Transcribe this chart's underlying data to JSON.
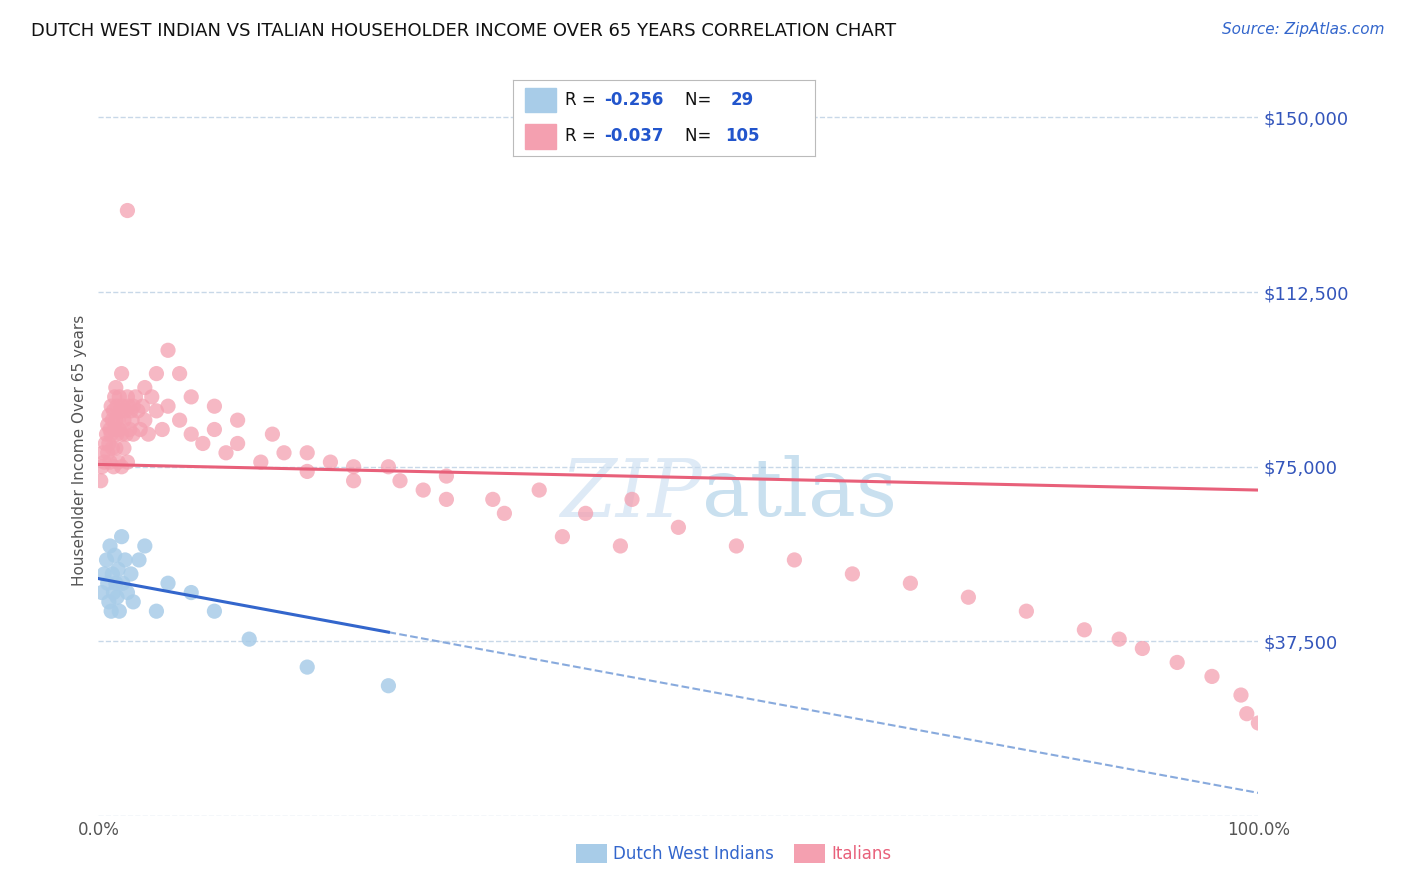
{
  "title": "DUTCH WEST INDIAN VS ITALIAN HOUSEHOLDER INCOME OVER 65 YEARS CORRELATION CHART",
  "source": "Source: ZipAtlas.com",
  "ylabel": "Householder Income Over 65 years",
  "xlim": [
    0.0,
    100.0
  ],
  "ylim": [
    0,
    157000
  ],
  "yticks": [
    0,
    37500,
    75000,
    112500,
    150000
  ],
  "ytick_labels": [
    "",
    "$37,500",
    "$75,000",
    "$112,500",
    "$150,000"
  ],
  "xtick_labels": [
    "0.0%",
    "100.0%"
  ],
  "legend_label1": "Dutch West Indians",
  "legend_label2": "Italians",
  "color_dwi": "#a8cce8",
  "color_ital": "#f4a0b0",
  "background_color": "#ffffff",
  "grid_color": "#c8d8e8",
  "dwi_x": [
    0.3,
    0.5,
    0.7,
    0.8,
    0.9,
    1.0,
    1.1,
    1.2,
    1.3,
    1.4,
    1.5,
    1.6,
    1.7,
    1.8,
    2.0,
    2.1,
    2.3,
    2.5,
    2.8,
    3.0,
    3.5,
    4.0,
    5.0,
    6.0,
    8.0,
    10.0,
    13.0,
    18.0,
    25.0
  ],
  "dwi_y": [
    48000,
    52000,
    55000,
    50000,
    46000,
    58000,
    44000,
    52000,
    48000,
    56000,
    50000,
    47000,
    53000,
    44000,
    60000,
    50000,
    55000,
    48000,
    52000,
    46000,
    55000,
    58000,
    44000,
    50000,
    48000,
    44000,
    38000,
    32000,
    28000
  ],
  "ital_x": [
    0.2,
    0.3,
    0.4,
    0.5,
    0.6,
    0.7,
    0.8,
    0.8,
    0.9,
    0.9,
    1.0,
    1.0,
    1.1,
    1.1,
    1.2,
    1.2,
    1.3,
    1.3,
    1.4,
    1.4,
    1.5,
    1.5,
    1.6,
    1.6,
    1.7,
    1.7,
    1.8,
    1.8,
    1.9,
    2.0,
    2.0,
    2.1,
    2.2,
    2.2,
    2.3,
    2.4,
    2.5,
    2.5,
    2.6,
    2.7,
    2.8,
    2.9,
    3.0,
    3.2,
    3.4,
    3.6,
    3.8,
    4.0,
    4.3,
    4.6,
    5.0,
    5.5,
    6.0,
    7.0,
    8.0,
    9.0,
    10.0,
    11.0,
    12.0,
    14.0,
    16.0,
    18.0,
    20.0,
    22.0,
    25.0,
    28.0,
    30.0,
    34.0,
    38.0,
    42.0,
    46.0,
    50.0,
    55.0,
    60.0,
    65.0,
    70.0,
    75.0,
    80.0,
    85.0,
    88.0,
    90.0,
    93.0,
    96.0,
    98.5,
    99.0,
    100.0,
    1.5,
    2.0,
    2.5,
    3.0,
    4.0,
    5.0,
    6.0,
    7.0,
    8.0,
    10.0,
    12.0,
    15.0,
    18.0,
    22.0,
    26.0,
    30.0,
    35.0,
    40.0,
    45.0
  ],
  "ital_y": [
    72000,
    75000,
    78000,
    76000,
    80000,
    82000,
    84000,
    78000,
    86000,
    80000,
    83000,
    76000,
    88000,
    82000,
    85000,
    79000,
    87000,
    75000,
    83000,
    90000,
    85000,
    79000,
    88000,
    82000,
    85000,
    76000,
    90000,
    83000,
    87000,
    82000,
    75000,
    88000,
    85000,
    79000,
    87000,
    82000,
    90000,
    76000,
    88000,
    83000,
    87000,
    85000,
    82000,
    90000,
    87000,
    83000,
    88000,
    85000,
    82000,
    90000,
    87000,
    83000,
    88000,
    85000,
    82000,
    80000,
    83000,
    78000,
    80000,
    76000,
    78000,
    74000,
    76000,
    72000,
    75000,
    70000,
    73000,
    68000,
    70000,
    65000,
    68000,
    62000,
    58000,
    55000,
    52000,
    50000,
    47000,
    44000,
    40000,
    38000,
    36000,
    33000,
    30000,
    26000,
    22000,
    20000,
    92000,
    95000,
    130000,
    88000,
    92000,
    95000,
    100000,
    95000,
    90000,
    88000,
    85000,
    82000,
    78000,
    75000,
    72000,
    68000,
    65000,
    60000,
    58000
  ]
}
